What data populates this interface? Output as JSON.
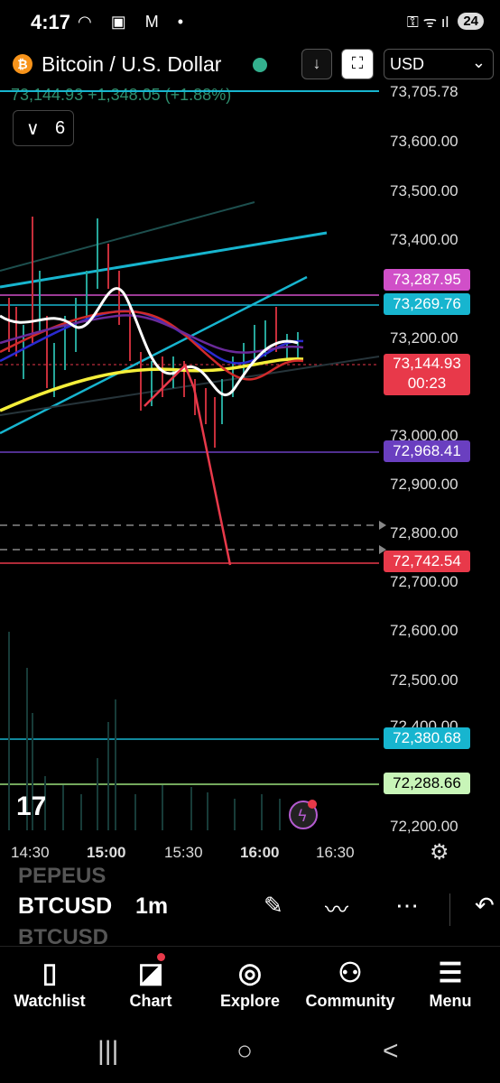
{
  "status_bar": {
    "time": "4:17",
    "icons": "◠ ▣ M •",
    "right_icons": "⚿ ᯤ ıl",
    "battery": "24"
  },
  "header": {
    "coin_icon": "₿",
    "title": "Bitcoin / U.S. Dollar",
    "download_icon": "↓",
    "fullscreen_icon": "⛶",
    "currency": "USD",
    "currency_chevron": "⌄",
    "quote": "73,144.93 +1,348.05 (+1.88%)",
    "indicators_count": "6",
    "collapse_icon": "∨"
  },
  "chart": {
    "price_axis": [
      "73,600.00",
      "73,500.00",
      "73,400.00",
      "73,200.00",
      "73,000.00",
      "72,900.00",
      "72,800.00",
      "72,700.00",
      "72,600.00",
      "72,500.00",
      "72,200.00"
    ],
    "partial_axis_top": "73,705.78",
    "partial_axis_bottom": "72,400.00",
    "time_axis": [
      "14:30",
      "15:00",
      "15:30",
      "16:00",
      "16:30"
    ],
    "badges": {
      "b1": "73,287.95",
      "b2": "73,269.76",
      "last_price": "73,144.93",
      "countdown": "00:23",
      "b4": "72,968.41",
      "b5": "72,742.54",
      "b6": "72,380.68",
      "b7": "72,288.66"
    },
    "colors": {
      "pink": "#d04fc8",
      "cyan": "#17b5cf",
      "red": "#e8394a",
      "purple": "#6a3fc0",
      "green_badge": "#c8f5b8",
      "yellow": "#f5ef3a",
      "white": "#ffffff"
    }
  },
  "toolbar": {
    "symbol": "BTCUSD",
    "ghost_above": "PEPEUS",
    "ghost_below": "BTCUSD",
    "timeframe": "1m",
    "draw_icon": "✎",
    "trendline_icon": "〰",
    "more_icon": "⋯",
    "undo_icon": "↶"
  },
  "tabs": [
    {
      "label": "Watchlist",
      "icon": "▯"
    },
    {
      "label": "Chart",
      "icon": "◪"
    },
    {
      "label": "Explore",
      "icon": "◎"
    },
    {
      "label": "Community",
      "icon": "⚇"
    },
    {
      "label": "Menu",
      "icon": "☰"
    }
  ],
  "nav": {
    "recent": "|||",
    "home": "○",
    "back": "<"
  }
}
